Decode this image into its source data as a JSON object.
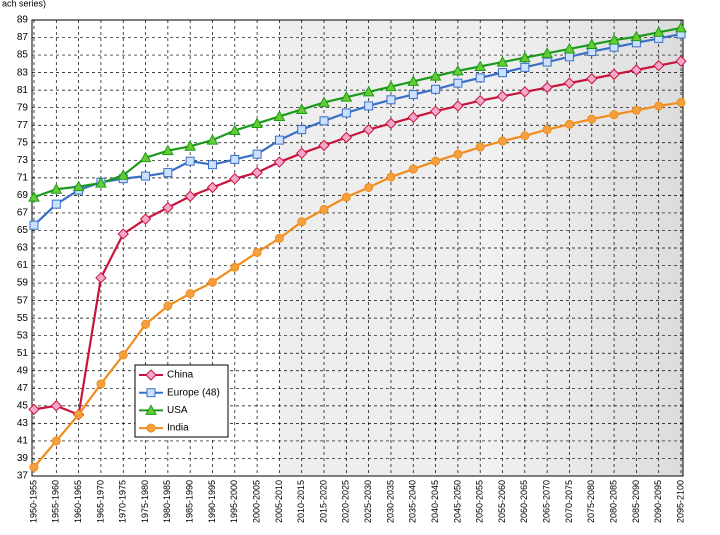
{
  "chart_data": {
    "type": "line",
    "subtitle": "ach series)",
    "categories": [
      "1950-1955",
      "1955-1960",
      "1960-1965",
      "1965-1970",
      "1970-1975",
      "1975-1980",
      "1980-1985",
      "1985-1990",
      "1990-1995",
      "1995-2000",
      "2000-2005",
      "2005-2010",
      "2010-2015",
      "2015-2020",
      "2020-2025",
      "2025-2030",
      "2030-2035",
      "2035-2040",
      "2040-2045",
      "2045-2050",
      "2050-2055",
      "2055-2060",
      "2060-2065",
      "2065-2070",
      "2070-2075",
      "2075-2080",
      "2080-2085",
      "2085-2090",
      "2090-2095",
      "2095-2100"
    ],
    "series": [
      {
        "name": "China",
        "color": "#c8143c",
        "marker": "diamond",
        "marker_color": "#f4a6cc",
        "values": [
          44.6,
          45.0,
          44.0,
          59.6,
          64.6,
          66.3,
          67.6,
          68.9,
          69.9,
          70.9,
          71.6,
          72.8,
          73.8,
          74.7,
          75.6,
          76.5,
          77.2,
          77.9,
          78.6,
          79.2,
          79.8,
          80.3,
          80.8,
          81.3,
          81.8,
          82.3,
          82.8,
          83.3,
          83.8,
          84.3
        ]
      },
      {
        "name": "Europe (48)",
        "color": "#3a6fc8",
        "marker": "square",
        "marker_color": "#cce0ff",
        "values": [
          65.6,
          68.0,
          69.6,
          70.5,
          70.9,
          71.2,
          71.6,
          72.9,
          72.5,
          73.1,
          73.7,
          75.3,
          76.5,
          77.5,
          78.4,
          79.2,
          79.9,
          80.5,
          81.1,
          81.8,
          82.4,
          83.0,
          83.6,
          84.2,
          84.8,
          85.4,
          85.9,
          86.4,
          86.9,
          87.4
        ]
      },
      {
        "name": "USA",
        "color": "#1a9a1a",
        "marker": "triangle",
        "marker_color": "#66cc33",
        "values": [
          68.8,
          69.7,
          70.0,
          70.4,
          71.3,
          73.3,
          74.1,
          74.6,
          75.3,
          76.4,
          77.2,
          78.0,
          78.8,
          79.6,
          80.2,
          80.8,
          81.4,
          82.0,
          82.6,
          83.2,
          83.7,
          84.2,
          84.7,
          85.2,
          85.7,
          86.2,
          86.7,
          87.1,
          87.6,
          88.1
        ]
      },
      {
        "name": "India",
        "color": "#f08c1a",
        "marker": "circle",
        "marker_color": "#f4a040",
        "values": [
          38.0,
          41.0,
          44.0,
          47.5,
          50.8,
          54.3,
          56.4,
          57.8,
          59.1,
          60.8,
          62.5,
          64.1,
          66.0,
          67.4,
          68.8,
          69.9,
          71.1,
          72.0,
          72.9,
          73.7,
          74.5,
          75.2,
          75.8,
          76.5,
          77.1,
          77.7,
          78.2,
          78.7,
          79.2,
          79.6
        ]
      }
    ],
    "ylim": [
      37,
      89
    ],
    "yticks": [
      37,
      39,
      41,
      43,
      45,
      47,
      49,
      51,
      53,
      55,
      57,
      59,
      61,
      63,
      65,
      67,
      69,
      71,
      73,
      75,
      77,
      79,
      81,
      83,
      85,
      87,
      89
    ],
    "grid": true
  }
}
